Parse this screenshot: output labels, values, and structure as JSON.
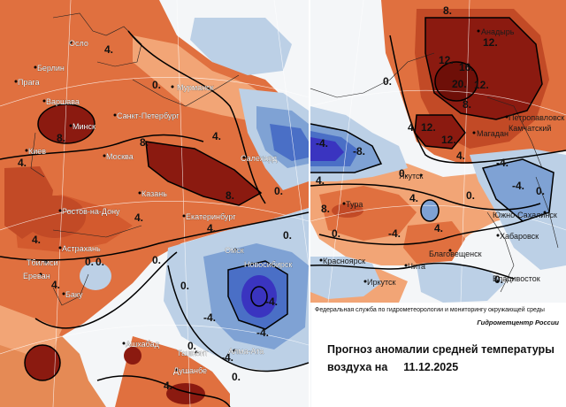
{
  "colors": {
    "warm_dark": "#8b1a10",
    "warm_mid": "#c24a26",
    "warm": "#e0703f",
    "warm_light": "#f2a576",
    "neutral": "#f6d2b3",
    "cool_light": "#bcd0e6",
    "cool": "#7fa2d4",
    "cool_mid": "#4a6fc6",
    "cool_dark": "#3a34c0"
  },
  "left_map": {
    "cities": [
      "Осло",
      "Берлин",
      "Прага",
      "Варшава",
      "Санкт-Петербург",
      "Мурманск",
      "Минск",
      "Киев",
      "Москва",
      "Казань",
      "Ростов-на-Дону",
      "Екатеринбург",
      "Салехард",
      "Астрахань",
      "Тбилиси",
      "Ереван",
      "Баку",
      "Омск",
      "Новосибирск",
      "Ашхабад",
      "Ташкент",
      "Алма-Ата",
      "Душанбе"
    ],
    "isotherm_labels": [
      "4.",
      "0.",
      "4.",
      "8.",
      "4.",
      "8.",
      "8.",
      "0.",
      "4.",
      "4.",
      "4.",
      "0.",
      "4.",
      "0.",
      "0.",
      "-4.",
      "-4.",
      "0.",
      "0.",
      "-4.",
      "-4.",
      "4.",
      "0.",
      "0."
    ]
  },
  "right_map": {
    "cities": [
      "Анадырь",
      "Петропавловск",
      "Камчатский",
      "Магадан",
      "Якутск",
      "Тура",
      "Красноярск",
      "Иркутск",
      "Чита",
      "Благовещенск",
      "Хабаровск",
      "Южно-Сахалинск",
      "Владивосток"
    ],
    "isotherm_labels": [
      "8.",
      "12.",
      "12.",
      "16.",
      "12.",
      "20.",
      "12.",
      "12.",
      "8.",
      "4.",
      "0.",
      "4.",
      "-4.",
      "-8.",
      "4.",
      "0.",
      "0.",
      "4.",
      "0.",
      "-4.",
      "0.",
      "-4.",
      "-4.",
      "4.",
      "8.",
      "0."
    ]
  },
  "info": {
    "agency": "Федеральная служба по гидрометеорологии и мониторингу окружающей среды",
    "center": "Гидрометцентр России",
    "title_line1": "Прогноз аномалии средней температуры",
    "title_line2": "воздуха на",
    "date": "11.12.2025"
  }
}
